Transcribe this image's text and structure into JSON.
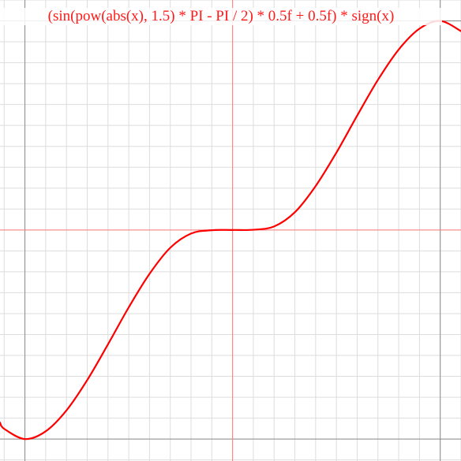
{
  "title": "(sin(pow(abs(x), 1.5) * PI - PI / 2) * 0.5f + 0.5f) * sign(x)",
  "colors": {
    "curve": "#ff0000",
    "axis": "#ff7a7a",
    "major_grid": "#8a8a8a",
    "minor_grid": "#dddddd",
    "title": "#ff1a1a"
  },
  "chart_data": {
    "type": "line",
    "title": "(sin(pow(abs(x), 1.5) * PI - PI / 2) * 0.5f + 0.5f) * sign(x)",
    "xlabel": "",
    "ylabel": "",
    "xlim": [
      -1.12,
      1.1
    ],
    "ylim": [
      -1.105,
      1.1
    ],
    "grid": true,
    "grid_step": 0.1,
    "major_lines": [
      -1,
      1
    ],
    "axes_lines": [
      0
    ],
    "series": [
      {
        "x": [
          -1.12,
          -1.1,
          -1.0,
          -0.9,
          -0.8,
          -0.7,
          -0.6,
          -0.5,
          -0.4,
          -0.3,
          -0.2,
          -0.1,
          0,
          0.1,
          0.2,
          0.3,
          0.4,
          0.5,
          0.6,
          0.7,
          0.8,
          0.9,
          1.0,
          1.1
        ],
        "y": [
          -0.921,
          -0.951,
          -1.0,
          -0.963,
          -0.863,
          -0.718,
          -0.547,
          -0.37,
          -0.21,
          -0.085,
          -0.017,
          -0.001,
          0,
          0.001,
          0.017,
          0.085,
          0.21,
          0.37,
          0.547,
          0.718,
          0.863,
          0.963,
          1.0,
          0.951
        ]
      }
    ]
  }
}
